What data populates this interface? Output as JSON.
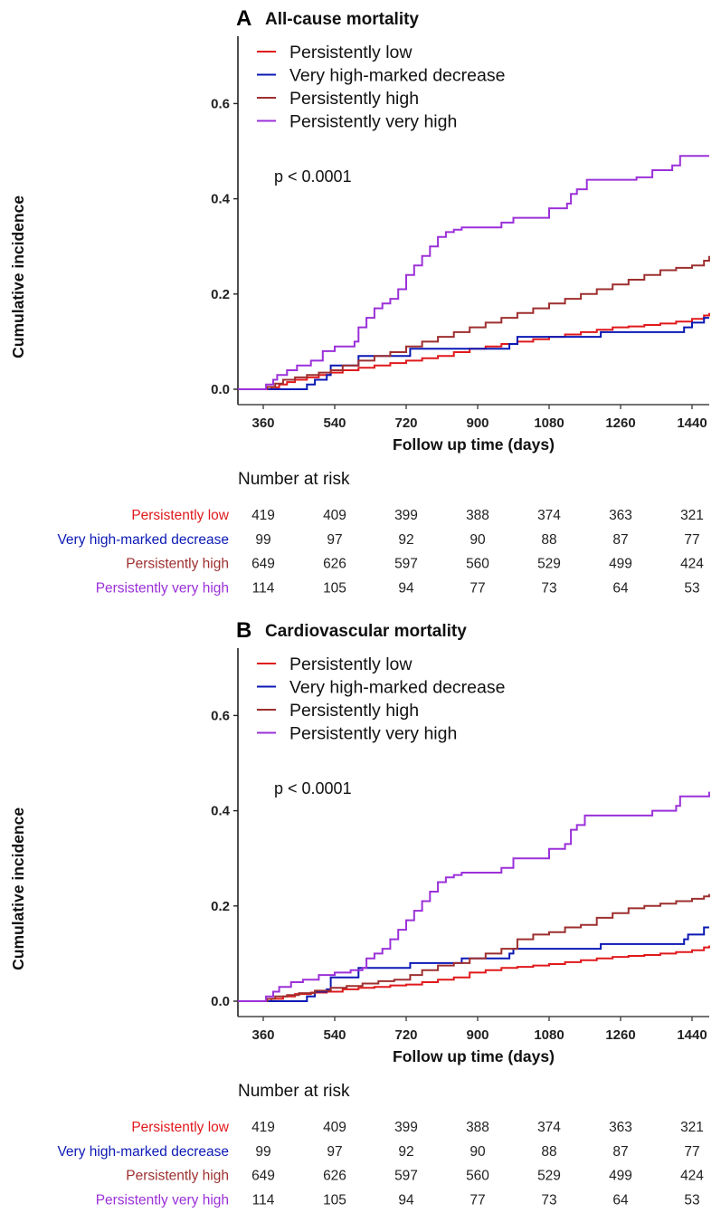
{
  "colors": {
    "persistently_low": "#e0191c",
    "very_high_marked_decrease": "#0b19b4",
    "persistently_high": "#9e2f2f",
    "persistently_very_high": "#9b30d9"
  },
  "risk_table_title": "Number at risk",
  "chart_data": [
    {
      "type": "line",
      "panel_letter": "A",
      "title": "All-cause mortality",
      "xlabel": "Follow up time (days)",
      "ylabel": "Cumulative incidence",
      "xlim": [
        296,
        1483
      ],
      "ylim": [
        -0.032,
        0.72
      ],
      "xticks": [
        360,
        540,
        720,
        900,
        1080,
        1260,
        1440
      ],
      "yticks": [
        0.0,
        0.2,
        0.4,
        0.6
      ],
      "ytick_labels": [
        "0.0",
        "0.2",
        "0.4",
        "0.6"
      ],
      "grid": false,
      "legend_position": "top-left",
      "annotation": "p < 0.0001",
      "series": [
        {
          "key": "persistently_low",
          "name": "Persistently low",
          "x": [
            296,
            380,
            400,
            420,
            440,
            470,
            500,
            530,
            560,
            600,
            640,
            680,
            720,
            760,
            800,
            840,
            880,
            920,
            960,
            1000,
            1040,
            1080,
            1120,
            1160,
            1200,
            1240,
            1280,
            1320,
            1360,
            1400,
            1440,
            1470,
            1483
          ],
          "y": [
            0,
            0.004,
            0.01,
            0.015,
            0.02,
            0.025,
            0.03,
            0.035,
            0.04,
            0.045,
            0.05,
            0.055,
            0.06,
            0.065,
            0.07,
            0.078,
            0.085,
            0.09,
            0.095,
            0.1,
            0.105,
            0.11,
            0.115,
            0.12,
            0.125,
            0.13,
            0.132,
            0.135,
            0.138,
            0.142,
            0.148,
            0.155,
            0.16
          ]
        },
        {
          "key": "very_high_marked_decrease",
          "name": "Very high-marked decrease",
          "x": [
            296,
            470,
            490,
            520,
            530,
            575,
            600,
            690,
            730,
            860,
            980,
            1000,
            1210,
            1260,
            1280,
            1420,
            1440,
            1470,
            1483
          ],
          "y": [
            0,
            0.01,
            0.02,
            0.03,
            0.05,
            0.05,
            0.07,
            0.07,
            0.085,
            0.085,
            0.095,
            0.11,
            0.12,
            0.12,
            0.12,
            0.13,
            0.14,
            0.15,
            0.15
          ]
        },
        {
          "key": "persistently_high",
          "name": "Persistently high",
          "x": [
            296,
            370,
            390,
            410,
            440,
            470,
            500,
            530,
            560,
            600,
            640,
            680,
            720,
            760,
            800,
            840,
            880,
            920,
            960,
            1000,
            1040,
            1080,
            1120,
            1160,
            1200,
            1240,
            1280,
            1320,
            1360,
            1400,
            1440,
            1470,
            1483
          ],
          "y": [
            0,
            0.005,
            0.012,
            0.02,
            0.025,
            0.03,
            0.035,
            0.04,
            0.05,
            0.06,
            0.07,
            0.078,
            0.09,
            0.1,
            0.11,
            0.12,
            0.13,
            0.14,
            0.15,
            0.16,
            0.17,
            0.18,
            0.19,
            0.2,
            0.21,
            0.22,
            0.23,
            0.24,
            0.25,
            0.255,
            0.26,
            0.27,
            0.28
          ]
        },
        {
          "key": "persistently_very_high",
          "name": "Persistently very high",
          "x": [
            296,
            367,
            385,
            395,
            420,
            445,
            480,
            510,
            540,
            590,
            600,
            620,
            640,
            660,
            680,
            700,
            720,
            740,
            760,
            780,
            800,
            820,
            840,
            860,
            960,
            990,
            1080,
            1125,
            1135,
            1150,
            1175,
            1300,
            1340,
            1390,
            1410,
            1483
          ],
          "y": [
            0,
            0.01,
            0.02,
            0.03,
            0.04,
            0.05,
            0.06,
            0.08,
            0.09,
            0.1,
            0.13,
            0.15,
            0.17,
            0.18,
            0.19,
            0.21,
            0.24,
            0.26,
            0.28,
            0.3,
            0.32,
            0.33,
            0.335,
            0.34,
            0.35,
            0.36,
            0.38,
            0.39,
            0.41,
            0.42,
            0.44,
            0.445,
            0.46,
            0.47,
            0.49,
            0.49
          ]
        }
      ],
      "risk_table": {
        "rows": [
          {
            "key": "persistently_low",
            "name": "Persistently low",
            "values": [
              419,
              409,
              399,
              388,
              374,
              363,
              321
            ]
          },
          {
            "key": "very_high_marked_decrease",
            "name": "Very high-marked decrease",
            "values": [
              99,
              97,
              92,
              90,
              88,
              87,
              77
            ]
          },
          {
            "key": "persistently_high",
            "name": "Persistently high",
            "values": [
              649,
              626,
              597,
              560,
              529,
              499,
              424
            ]
          },
          {
            "key": "persistently_very_high",
            "name": "Persistently very high",
            "values": [
              114,
              105,
              94,
              77,
              73,
              64,
              53
            ]
          }
        ]
      }
    },
    {
      "type": "line",
      "panel_letter": "B",
      "title": "Cardiovascular mortality",
      "xlabel": "Follow up time (days)",
      "ylabel": "Cumulative incidence",
      "xlim": [
        296,
        1483
      ],
      "ylim": [
        -0.032,
        0.72
      ],
      "xticks": [
        360,
        540,
        720,
        900,
        1080,
        1260,
        1440
      ],
      "yticks": [
        0.0,
        0.2,
        0.4,
        0.6
      ],
      "ytick_labels": [
        "0.0",
        "0.2",
        "0.4",
        "0.6"
      ],
      "grid": false,
      "legend_position": "top-left",
      "annotation": "p < 0.0001",
      "series": [
        {
          "key": "persistently_low",
          "name": "Persistently low",
          "x": [
            296,
            380,
            410,
            440,
            480,
            520,
            560,
            600,
            640,
            680,
            720,
            760,
            800,
            840,
            880,
            920,
            960,
            1000,
            1040,
            1080,
            1120,
            1160,
            1200,
            1240,
            1280,
            1320,
            1360,
            1400,
            1440,
            1470,
            1483
          ],
          "y": [
            0,
            0.005,
            0.01,
            0.015,
            0.018,
            0.02,
            0.025,
            0.028,
            0.03,
            0.033,
            0.035,
            0.04,
            0.045,
            0.05,
            0.06,
            0.065,
            0.07,
            0.072,
            0.075,
            0.078,
            0.082,
            0.086,
            0.09,
            0.093,
            0.095,
            0.097,
            0.1,
            0.103,
            0.107,
            0.113,
            0.117
          ]
        },
        {
          "key": "very_high_marked_decrease",
          "name": "Very high-marked decrease",
          "x": [
            296,
            470,
            490,
            520,
            530,
            580,
            600,
            690,
            730,
            860,
            980,
            990,
            1210,
            1260,
            1420,
            1430,
            1470,
            1483
          ],
          "y": [
            0,
            0.01,
            0.02,
            0.025,
            0.05,
            0.05,
            0.07,
            0.07,
            0.08,
            0.09,
            0.1,
            0.11,
            0.12,
            0.12,
            0.13,
            0.14,
            0.155,
            0.155
          ]
        },
        {
          "key": "persistently_high",
          "name": "Persistently high",
          "x": [
            296,
            370,
            390,
            420,
            450,
            490,
            530,
            570,
            610,
            650,
            690,
            730,
            760,
            800,
            840,
            880,
            920,
            960,
            1000,
            1040,
            1080,
            1120,
            1160,
            1200,
            1240,
            1280,
            1320,
            1360,
            1400,
            1440,
            1470,
            1483
          ],
          "y": [
            0,
            0.005,
            0.01,
            0.013,
            0.017,
            0.022,
            0.028,
            0.032,
            0.037,
            0.042,
            0.045,
            0.055,
            0.065,
            0.075,
            0.08,
            0.09,
            0.1,
            0.11,
            0.13,
            0.14,
            0.145,
            0.155,
            0.16,
            0.175,
            0.185,
            0.195,
            0.2,
            0.205,
            0.21,
            0.215,
            0.22,
            0.225
          ]
        },
        {
          "key": "persistently_very_high",
          "name": "Persistently very high",
          "x": [
            296,
            367,
            385,
            400,
            430,
            460,
            500,
            540,
            580,
            610,
            620,
            640,
            660,
            680,
            700,
            720,
            740,
            760,
            780,
            800,
            820,
            840,
            860,
            960,
            990,
            1080,
            1120,
            1135,
            1150,
            1170,
            1290,
            1340,
            1400,
            1410,
            1483
          ],
          "y": [
            0,
            0.01,
            0.02,
            0.03,
            0.04,
            0.045,
            0.055,
            0.06,
            0.065,
            0.07,
            0.09,
            0.1,
            0.11,
            0.13,
            0.15,
            0.17,
            0.19,
            0.21,
            0.23,
            0.25,
            0.26,
            0.265,
            0.27,
            0.28,
            0.3,
            0.32,
            0.33,
            0.36,
            0.37,
            0.39,
            0.39,
            0.4,
            0.41,
            0.43,
            0.44
          ]
        }
      ],
      "risk_table": {
        "rows": [
          {
            "key": "persistently_low",
            "name": "Persistently low",
            "values": [
              419,
              409,
              399,
              388,
              374,
              363,
              321
            ]
          },
          {
            "key": "very_high_marked_decrease",
            "name": "Very high-marked decrease",
            "values": [
              99,
              97,
              92,
              90,
              88,
              87,
              77
            ]
          },
          {
            "key": "persistently_high",
            "name": "Persistently high",
            "values": [
              649,
              626,
              597,
              560,
              529,
              499,
              424
            ]
          },
          {
            "key": "persistently_very_high",
            "name": "Persistently very high",
            "values": [
              114,
              105,
              94,
              77,
              73,
              64,
              53
            ]
          }
        ]
      }
    }
  ]
}
